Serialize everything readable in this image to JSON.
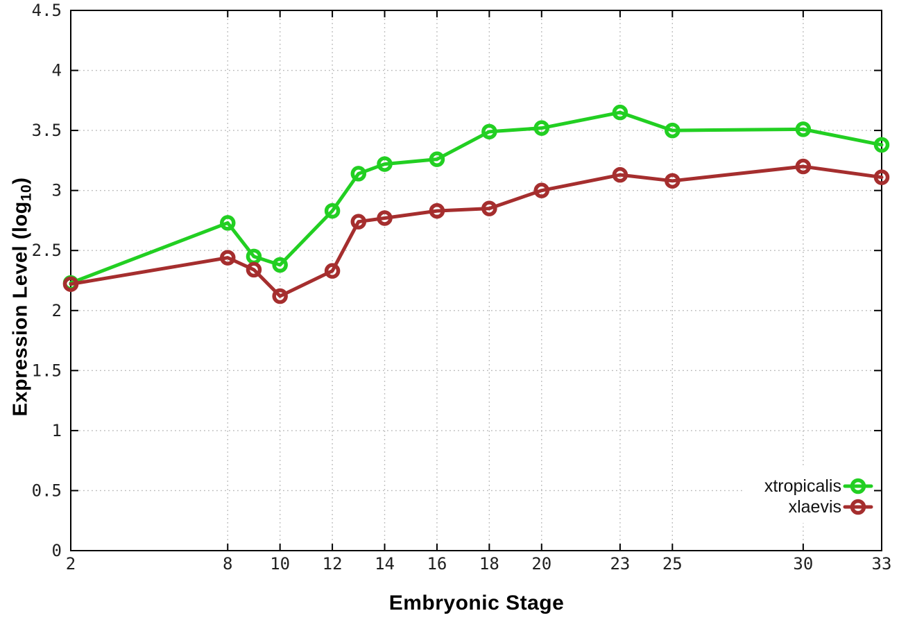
{
  "chart_data": {
    "type": "line",
    "title": "",
    "xlabel": "Embryonic Stage",
    "ylabel": "Expression Level (log10)",
    "ylabel_parts": {
      "main": "Expression Level (log",
      "subscript": "10",
      "suffix": ")"
    },
    "x": [
      2,
      8,
      9,
      10,
      12,
      13,
      14,
      16,
      18,
      20,
      23,
      25,
      30,
      33
    ],
    "x_ticks": [
      2,
      8,
      10,
      12,
      14,
      16,
      18,
      20,
      23,
      25,
      30,
      33
    ],
    "xlim": [
      2,
      33
    ],
    "y_ticks": [
      0,
      0.5,
      1,
      1.5,
      2,
      2.5,
      3,
      3.5,
      4,
      4.5
    ],
    "ylim": [
      0,
      4.5
    ],
    "grid": true,
    "grid_style": "dotted",
    "legend_position": "bottom-right",
    "series": [
      {
        "name": "xtropicalis",
        "color": "#22cf22",
        "marker": "open-circle",
        "values": [
          2.23,
          2.73,
          2.45,
          2.38,
          2.83,
          3.14,
          3.22,
          3.26,
          3.49,
          3.52,
          3.65,
          3.5,
          3.51,
          3.38
        ]
      },
      {
        "name": "xlaevis",
        "color": "#a52e2e",
        "marker": "open-circle",
        "values": [
          2.22,
          2.44,
          2.34,
          2.12,
          2.33,
          2.74,
          2.77,
          2.83,
          2.85,
          3.0,
          3.13,
          3.08,
          3.2,
          3.11
        ]
      }
    ],
    "colors": {
      "axis": "#000000",
      "grid": "#b8b8b8",
      "tick_text": "#1f1f1f",
      "background": "#ffffff"
    }
  }
}
